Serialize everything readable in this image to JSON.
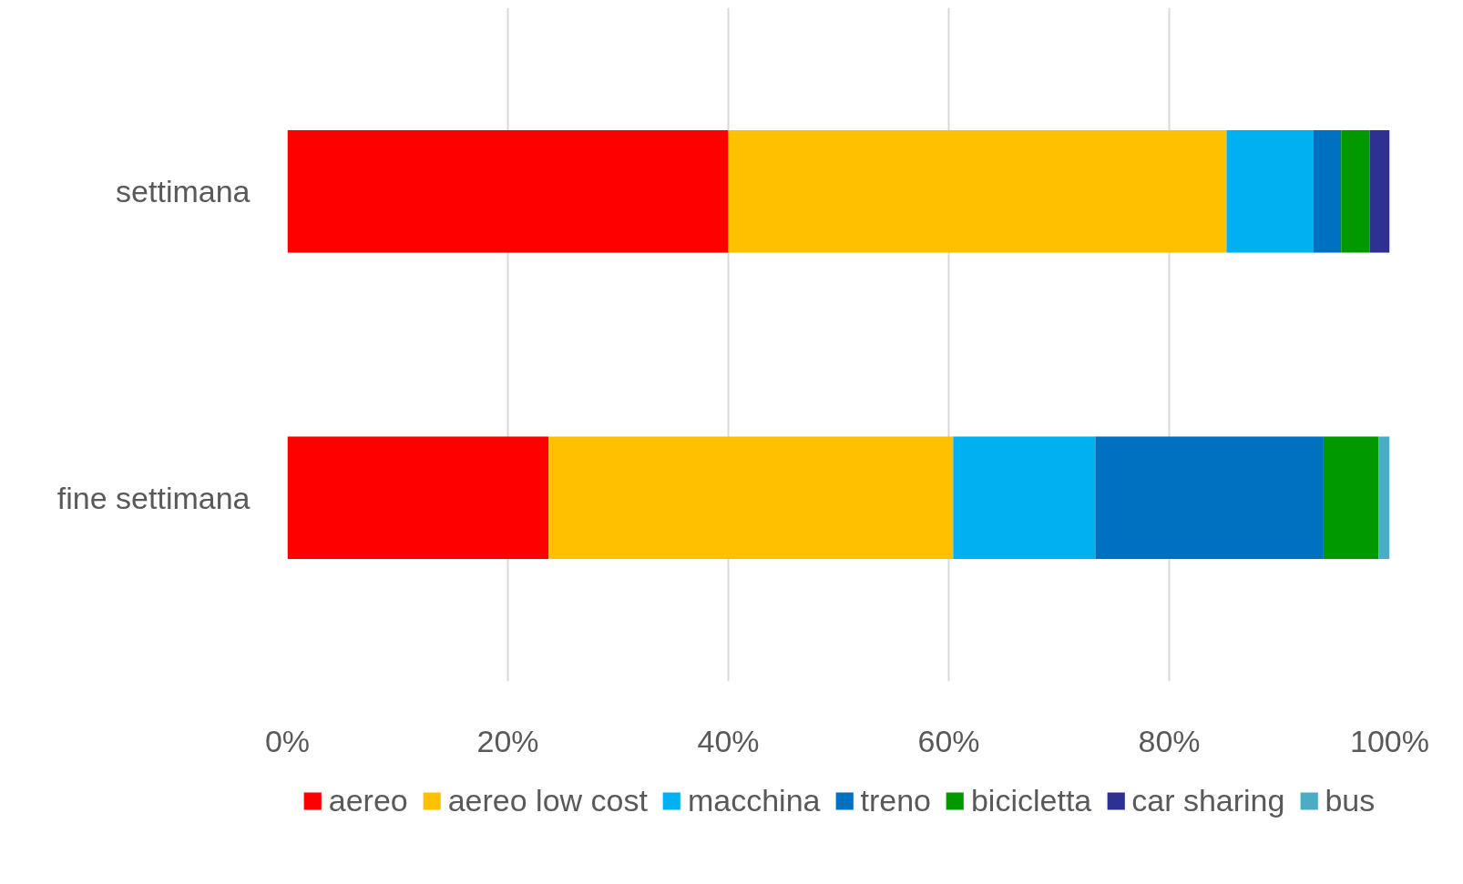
{
  "chart_data": {
    "type": "bar",
    "orientation": "horizontal",
    "stacked": true,
    "categories": [
      "settimana",
      "fine settimana"
    ],
    "series": [
      {
        "name": "aereo",
        "color": "#ff0000",
        "values": [
          40.0,
          23.7
        ]
      },
      {
        "name": "aereo low cost",
        "color": "#ffc000",
        "values": [
          45.2,
          36.7
        ]
      },
      {
        "name": "macchina",
        "color": "#00b0f0",
        "values": [
          7.9,
          12.9
        ]
      },
      {
        "name": "treno",
        "color": "#0070c0",
        "values": [
          2.5,
          20.7
        ]
      },
      {
        "name": "bicicletta",
        "color": "#009900",
        "values": [
          2.6,
          5.0
        ]
      },
      {
        "name": "car sharing",
        "color": "#2e3192",
        "values": [
          1.8,
          0
        ]
      },
      {
        "name": "bus",
        "color": "#4bacc6",
        "values": [
          0,
          1.0
        ]
      }
    ],
    "xlim": [
      0,
      100
    ],
    "xticks": [
      {
        "value": 0,
        "label": "0%"
      },
      {
        "value": 20,
        "label": "20%"
      },
      {
        "value": 40,
        "label": "40%"
      },
      {
        "value": 60,
        "label": "60%"
      },
      {
        "value": 80,
        "label": "80%"
      },
      {
        "value": 100,
        "label": "100%"
      }
    ],
    "grid": "x",
    "legend": "bottom"
  }
}
